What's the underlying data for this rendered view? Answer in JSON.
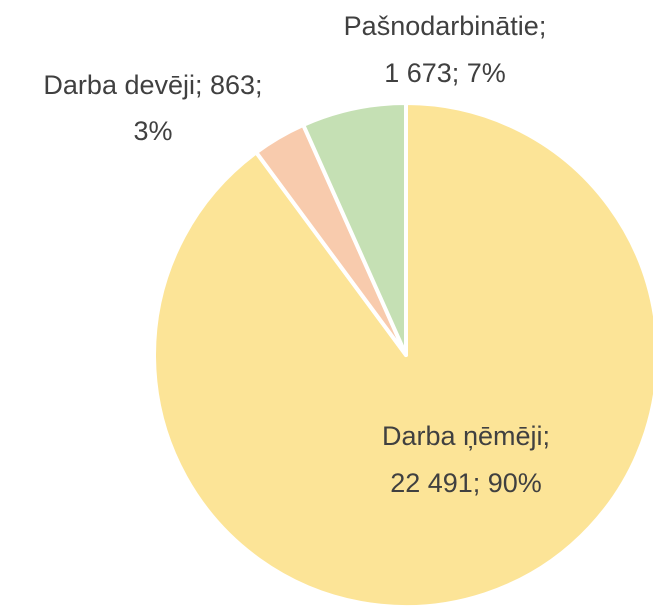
{
  "chart_data": {
    "type": "pie",
    "categories": [
      "Darba ņēmēji",
      "Darba devēji",
      "Pašnodarbinātie"
    ],
    "values": [
      22491,
      863,
      1673
    ],
    "colors": [
      "#fce497",
      "#f8cbad",
      "#c5e0b4"
    ],
    "labels": [
      [
        "Darba ņēmēji;",
        "22 491; 90%"
      ],
      [
        "Darba devēji; 863;",
        "3%"
      ],
      [
        "Pašnodarbinātie;",
        "1 673; 7%"
      ]
    ]
  }
}
